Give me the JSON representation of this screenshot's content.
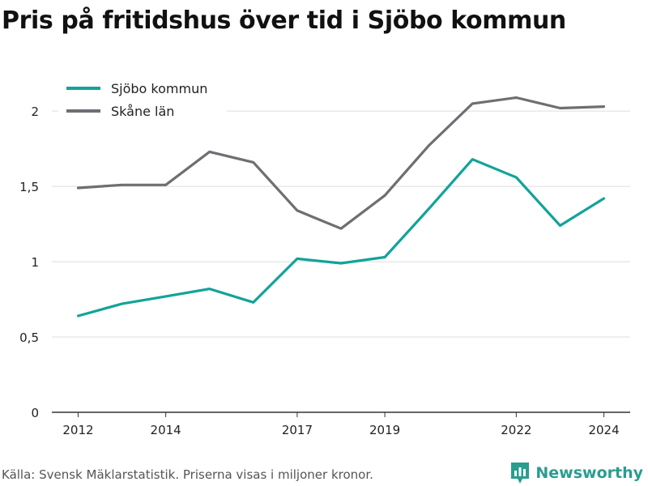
{
  "title": "Pris på fritidshus över tid i Sjöbo kommun",
  "caption": "Källa: Svensk Mäklarstatistik. Priserna visas i miljoner kronor.",
  "brand": {
    "name": "Newsworthy",
    "icon": "newsworthy-logo-icon",
    "color": "#2a9d8f"
  },
  "colors": {
    "sjobo": "#12a39a",
    "skane": "#6e6e73",
    "grid": "#dddddd",
    "axis": "#333333",
    "tick_text": "#222222"
  },
  "chart_data": {
    "type": "line",
    "title": "Pris på fritidshus över tid i Sjöbo kommun",
    "xlabel": "",
    "ylabel": "",
    "x": [
      2012,
      2013,
      2014,
      2015,
      2016,
      2017,
      2018,
      2019,
      2020,
      2021,
      2022,
      2023,
      2024
    ],
    "x_ticks": [
      2012,
      2014,
      2017,
      2019,
      2022,
      2024
    ],
    "x_tick_labels": [
      "2012",
      "2014",
      "2017",
      "2019",
      "2022",
      "2024"
    ],
    "xlim": [
      2011.4,
      2024.6
    ],
    "ylim": [
      0,
      2.2
    ],
    "y_ticks": [
      0,
      0.5,
      1,
      1.5,
      2
    ],
    "y_tick_labels": [
      "0",
      "0,5",
      "1",
      "1,5",
      "2"
    ],
    "grid": true,
    "legend_position": "top-left",
    "series": [
      {
        "name": "Sjöbo kommun",
        "color": "#12a39a",
        "values": [
          0.64,
          0.72,
          0.77,
          0.82,
          0.73,
          1.02,
          0.99,
          1.03,
          1.35,
          1.68,
          1.56,
          1.24,
          1.42
        ]
      },
      {
        "name": "Skåne län",
        "color": "#6e6e73",
        "values": [
          1.49,
          1.51,
          1.51,
          1.73,
          1.66,
          1.34,
          1.22,
          1.44,
          1.77,
          2.05,
          2.09,
          2.02,
          2.03
        ]
      }
    ]
  }
}
